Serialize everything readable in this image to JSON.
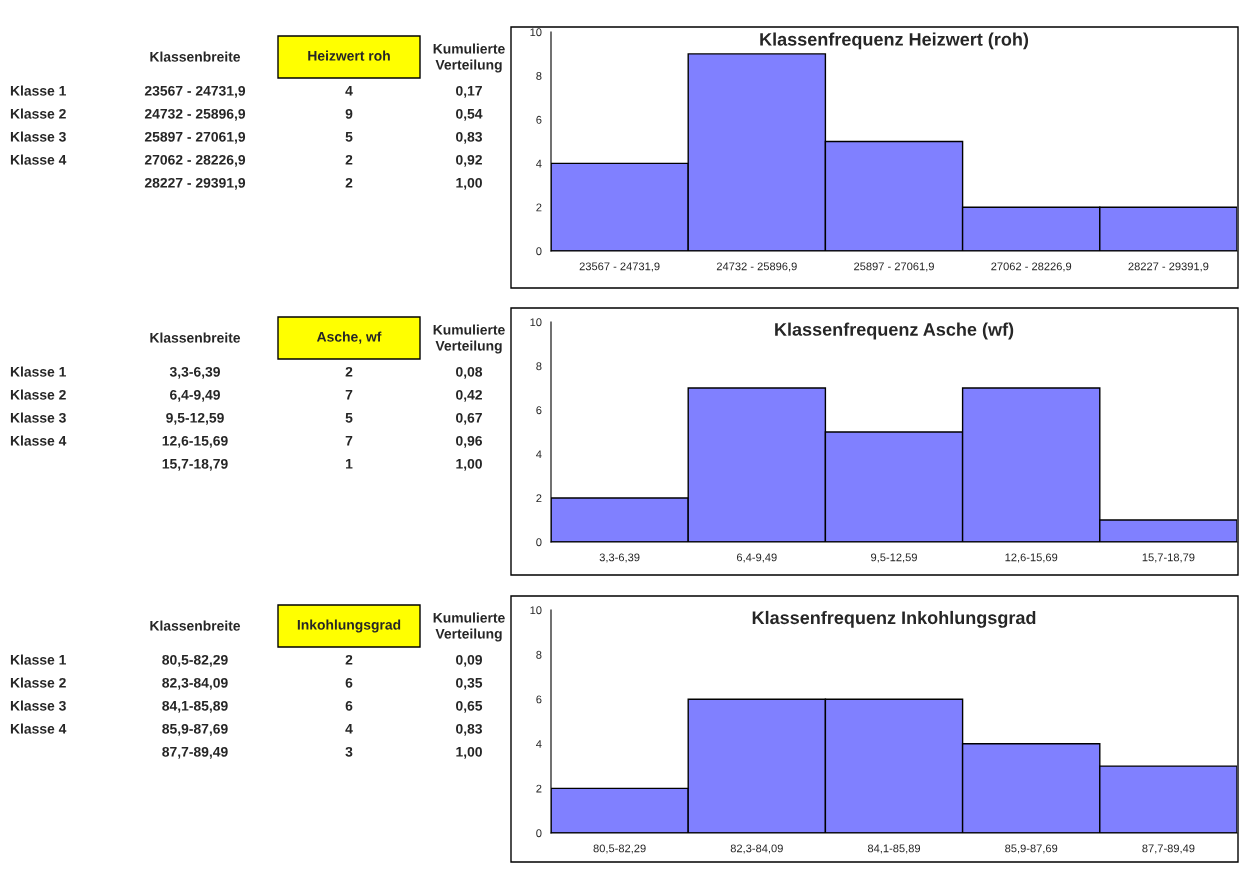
{
  "chart_data": [
    {
      "type": "other",
      "title": "Heizwert roh",
      "annotations": [
        "Klassenbreite",
        "Kumulierte Verteilung",
        "Klasse 1",
        "Klasse 2",
        "Klasse 3",
        "Klasse 4",
        "23567 - 24731,9",
        "24732 - 25896,9",
        "25897 - 27061,9",
        "27062 - 28226,9",
        "28227 - 29391,9",
        "4",
        "9",
        "5",
        "2",
        "2",
        "0,17",
        "0,54",
        "0,83",
        "0,92",
        "1,00"
      ]
    },
    {
      "type": "bar",
      "title": "Klassenfrequenz Heizwert (roh)",
      "categories": [
        "23567 - 24731,9",
        "24732 - 25896,9",
        "25897 - 27061,9",
        "27062 - 28226,9",
        "28227 - 29391,9"
      ],
      "values": [
        4,
        9,
        5,
        2,
        2
      ],
      "color": "#8080ff",
      "ylim": [
        0,
        10
      ],
      "yticks": [
        0,
        2,
        4,
        6,
        8,
        10
      ],
      "grid": false,
      "legend": false
    },
    {
      "type": "other",
      "title": "Asche, wf",
      "annotations": [
        "Klassenbreite",
        "Kumulierte Verteilung",
        "Klasse 1",
        "Klasse 2",
        "Klasse 3",
        "Klasse 4",
        "3,3-6,39",
        "6,4-9,49",
        "9,5-12,59",
        "12,6-15,69",
        "15,7-18,79",
        "2",
        "7",
        "5",
        "7",
        "1",
        "0,08",
        "0,42",
        "0,67",
        "0,96",
        "1,00"
      ]
    },
    {
      "type": "bar",
      "title": "Klassenfrequenz Asche (wf)",
      "categories": [
        "3,3-6,39",
        "6,4-9,49",
        "9,5-12,59",
        "12,6-15,69",
        "15,7-18,79"
      ],
      "values": [
        2,
        7,
        5,
        7,
        1
      ],
      "color": "#8080ff",
      "ylim": [
        0,
        10
      ],
      "yticks": [
        0,
        2,
        4,
        6,
        8,
        10
      ],
      "grid": false,
      "legend": false
    },
    {
      "type": "other",
      "title": "Inkohlungsgrad",
      "annotations": [
        "Klassenbreite",
        "Kumulierte Verteilung",
        "Klasse 1",
        "Klasse 2",
        "Klasse 3",
        "Klasse 4",
        "80,5-82,29",
        "82,3-84,09",
        "84,1-85,89",
        "85,9-87,69",
        "87,7-89,49",
        "2",
        "6",
        "6",
        "4",
        "3",
        "0,09",
        "0,35",
        "0,65",
        "0,83",
        "1,00"
      ]
    },
    {
      "type": "bar",
      "title": "Klassenfrequenz Inkohlungsgrad",
      "categories": [
        "80,5-82,29",
        "82,3-84,09",
        "84,1-85,89",
        "85,9-87,69",
        "87,7-89,49"
      ],
      "values": [
        2,
        6,
        6,
        4,
        3
      ],
      "color": "#8080ff",
      "ylim": [
        0,
        10
      ],
      "yticks": [
        0,
        2,
        4,
        6,
        8,
        10
      ],
      "grid": false,
      "legend": false
    }
  ]
}
